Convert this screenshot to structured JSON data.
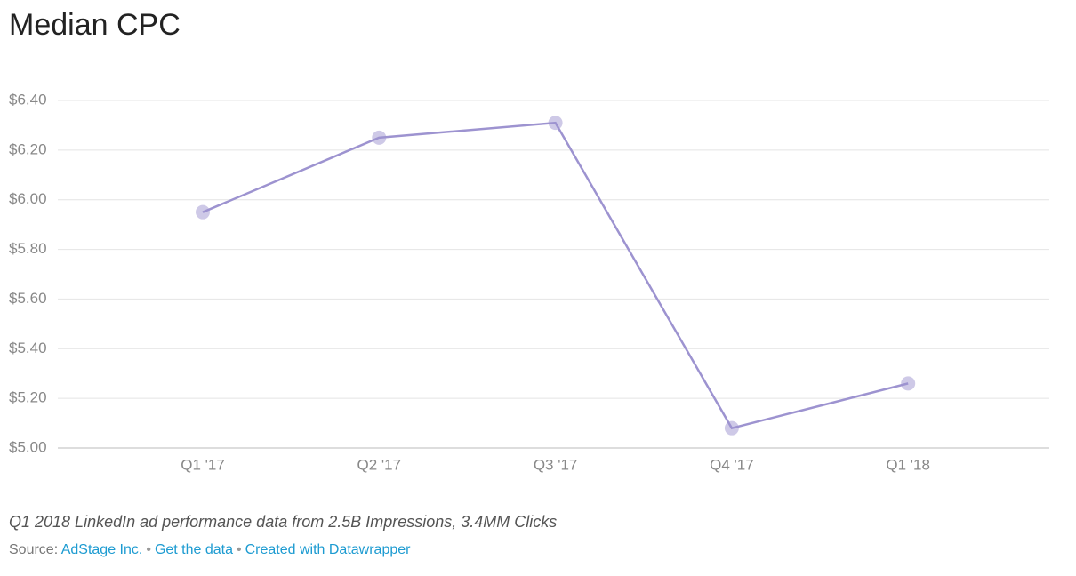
{
  "chart_data": {
    "type": "line",
    "title": "Median CPC",
    "categories": [
      "Q1 '17",
      "Q2 '17",
      "Q3 '17",
      "Q4 '17",
      "Q1 '18"
    ],
    "series": [
      {
        "name": "Median CPC",
        "color": "#9d93d0",
        "values": [
          5.95,
          6.25,
          6.31,
          5.08,
          5.26
        ]
      }
    ],
    "ylim": [
      5.0,
      6.4
    ],
    "yticks": [
      {
        "value": 5.0,
        "label": "$5.00"
      },
      {
        "value": 5.2,
        "label": "$5.20"
      },
      {
        "value": 5.4,
        "label": "$5.40"
      },
      {
        "value": 5.6,
        "label": "$5.60"
      },
      {
        "value": 5.8,
        "label": "$5.80"
      },
      {
        "value": 6.0,
        "label": "$6.00"
      },
      {
        "value": 6.2,
        "label": "$6.20"
      },
      {
        "value": 6.4,
        "label": "$6.40"
      }
    ],
    "grid": true,
    "note": "Q1 2018 LinkedIn ad performance data from 2.5B Impressions, 3.4MM Clicks",
    "source_label": "Source:",
    "source_separator": "•",
    "source_links": [
      "AdStage Inc.",
      "Get the data",
      "Created with Datawrapper"
    ]
  }
}
